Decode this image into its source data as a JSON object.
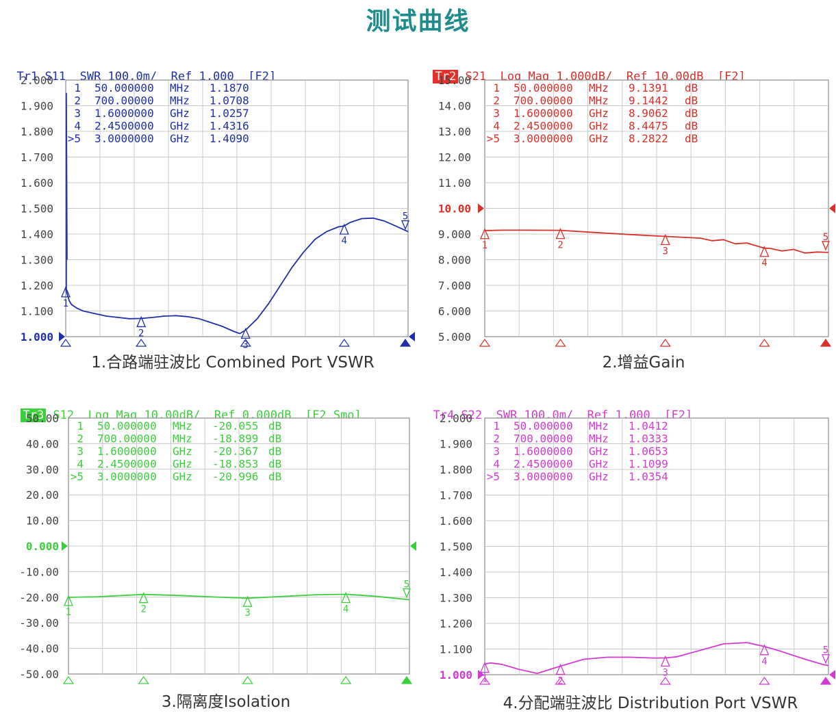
{
  "title": "测试曲线",
  "panels": [
    {
      "id": "p1",
      "header": {
        "trace": "Tr1",
        "rest": " S11  SWR 100.0m/  Ref 1.000  [F2]",
        "trace_highlighted": false
      },
      "caption": "1.合路端驻波比 Combined Port VSWR",
      "color": "#1f2fa8",
      "ticks": [
        "2.000",
        "1.900",
        "1.800",
        "1.700",
        "1.600",
        "1.500",
        "1.400",
        "1.300",
        "1.200",
        "1.100",
        "1.000"
      ],
      "ref_index": 10,
      "markers": [
        {
          "num": "1",
          "freq": "50.000000",
          "unit": "MHz",
          "value": "1.1870",
          "dB": ""
        },
        {
          "num": "2",
          "freq": "700.00000",
          "unit": "MHz",
          "value": "1.0708",
          "dB": ""
        },
        {
          "num": "3",
          "freq": "1.6000000",
          "unit": "GHz",
          "value": "1.0257",
          "dB": ""
        },
        {
          "num": "4",
          "freq": "2.4500000",
          "unit": "GHz",
          "value": "1.4316",
          "dB": ""
        },
        {
          "num": ">5",
          "freq": "3.0000000",
          "unit": "GHz",
          "value": "1.4090",
          "dB": ""
        }
      ]
    },
    {
      "id": "p2",
      "header": {
        "trace": "Tr2",
        "rest": " S21  Log Mag 1.000dB/  Ref 10.00dB  [F2]",
        "trace_highlighted": true
      },
      "caption": "2.增益Gain",
      "color": "#d9302a",
      "ticks": [
        "15.00",
        "14.00",
        "13.00",
        "12.00",
        "11.00",
        "10.00",
        "9.000",
        "8.000",
        "7.000",
        "6.000",
        "5.000"
      ],
      "ref_index": 5,
      "markers": [
        {
          "num": "1",
          "freq": "50.000000",
          "unit": "MHz",
          "value": "9.1391",
          "dB": "dB"
        },
        {
          "num": "2",
          "freq": "700.00000",
          "unit": "MHz",
          "value": "9.1442",
          "dB": "dB"
        },
        {
          "num": "3",
          "freq": "1.6000000",
          "unit": "GHz",
          "value": "8.9062",
          "dB": "dB"
        },
        {
          "num": "4",
          "freq": "2.4500000",
          "unit": "GHz",
          "value": "8.4475",
          "dB": "dB"
        },
        {
          "num": ">5",
          "freq": "3.0000000",
          "unit": "GHz",
          "value": "8.2822",
          "dB": "dB"
        }
      ]
    },
    {
      "id": "p3",
      "header": {
        "trace": "Tr3",
        "rest": " S12  Log Mag 10.00dB/  Ref 0.000dB  [F2 Smo]",
        "trace_highlighted": true
      },
      "caption": "3.隔离度Isolation",
      "color": "#3ccf3c",
      "ticks": [
        "50.00",
        "40.00",
        "30.00",
        "20.00",
        "10.00",
        "0.000",
        "-10.00",
        "-20.00",
        "-30.00",
        "-40.00",
        "-50.00"
      ],
      "ref_index": 5,
      "markers": [
        {
          "num": "1",
          "freq": "50.000000",
          "unit": "MHz",
          "value": "-20.055",
          "dB": "dB"
        },
        {
          "num": "2",
          "freq": "700.00000",
          "unit": "MHz",
          "value": "-18.899",
          "dB": "dB"
        },
        {
          "num": "3",
          "freq": "1.6000000",
          "unit": "GHz",
          "value": "-20.367",
          "dB": "dB"
        },
        {
          "num": "4",
          "freq": "2.4500000",
          "unit": "GHz",
          "value": "-18.853",
          "dB": "dB"
        },
        {
          "num": ">5",
          "freq": "3.0000000",
          "unit": "GHz",
          "value": "-20.996",
          "dB": "dB"
        }
      ]
    },
    {
      "id": "p4",
      "header": {
        "trace": "Tr4",
        "rest": " S22  SWR 100.0m/  Ref 1.000  [F2]",
        "trace_highlighted": false
      },
      "caption": "4.分配端驻波比 Distribution  Port VSWR",
      "color": "#d23ad2",
      "ticks": [
        "2.000",
        "1.900",
        "1.800",
        "1.700",
        "1.600",
        "1.500",
        "1.400",
        "1.300",
        "1.200",
        "1.100",
        "1.000"
      ],
      "ref_index": 10,
      "markers": [
        {
          "num": "1",
          "freq": "50.000000",
          "unit": "MHz",
          "value": "1.0412",
          "dB": ""
        },
        {
          "num": "2",
          "freq": "700.00000",
          "unit": "MHz",
          "value": "1.0333",
          "dB": ""
        },
        {
          "num": "3",
          "freq": "1.6000000",
          "unit": "GHz",
          "value": "1.0653",
          "dB": ""
        },
        {
          "num": "4",
          "freq": "2.4500000",
          "unit": "GHz",
          "value": "1.1099",
          "dB": ""
        },
        {
          "num": ">5",
          "freq": "3.0000000",
          "unit": "GHz",
          "value": "1.0354",
          "dB": ""
        }
      ]
    }
  ],
  "chart_data": [
    {
      "type": "line",
      "series": [
        {
          "x": [
            0.05,
            0.06,
            0.08,
            0.1,
            0.15,
            0.2,
            0.3,
            0.4,
            0.5,
            0.6,
            0.7,
            0.8,
            0.9,
            1.0,
            1.1,
            1.2,
            1.3,
            1.4,
            1.5,
            1.55,
            1.6,
            1.7,
            1.8,
            1.9,
            2.0,
            2.1,
            2.2,
            2.3,
            2.4,
            2.45,
            2.5,
            2.6,
            2.7,
            2.8,
            2.9,
            3.0
          ],
          "y": [
            1.187,
            1.17,
            1.14,
            1.125,
            1.11,
            1.1,
            1.09,
            1.08,
            1.075,
            1.07,
            1.0708,
            1.075,
            1.08,
            1.082,
            1.078,
            1.07,
            1.055,
            1.04,
            1.02,
            1.012,
            1.0257,
            1.07,
            1.13,
            1.2,
            1.27,
            1.33,
            1.38,
            1.41,
            1.428,
            1.4316,
            1.445,
            1.46,
            1.462,
            1.45,
            1.43,
            1.409
          ]
        }
      ],
      "ylim": [
        1.0,
        2.0
      ],
      "xlim": [
        0.05,
        3.0
      ]
    },
    {
      "type": "line",
      "series": [
        {
          "x": [
            0.05,
            0.1,
            0.2,
            0.4,
            0.7,
            1.0,
            1.3,
            1.6,
            1.9,
            2.0,
            2.1,
            2.2,
            2.3,
            2.45,
            2.5,
            2.6,
            2.7,
            2.8,
            2.9,
            3.0
          ],
          "y": [
            9.1391,
            9.14,
            9.15,
            9.15,
            9.1442,
            9.06,
            8.98,
            8.9062,
            8.84,
            8.74,
            8.78,
            8.62,
            8.65,
            8.4475,
            8.44,
            8.34,
            8.4,
            8.26,
            8.3,
            8.2822
          ]
        }
      ],
      "ylim": [
        5.0,
        15.0
      ],
      "xlim": [
        0.05,
        3.0
      ]
    },
    {
      "type": "line",
      "series": [
        {
          "x": [
            0.05,
            0.3,
            0.7,
            1.0,
            1.3,
            1.6,
            1.9,
            2.2,
            2.45,
            2.7,
            3.0
          ],
          "y": [
            -20.055,
            -19.8,
            -18.899,
            -19.3,
            -19.9,
            -20.367,
            -19.7,
            -19.0,
            -18.853,
            -19.6,
            -20.996
          ]
        }
      ],
      "ylim": [
        -50.0,
        50.0
      ],
      "xlim": [
        0.05,
        3.0
      ]
    },
    {
      "type": "line",
      "series": [
        {
          "x": [
            0.05,
            0.1,
            0.2,
            0.35,
            0.5,
            0.7,
            0.9,
            1.1,
            1.3,
            1.5,
            1.6,
            1.7,
            1.9,
            2.1,
            2.3,
            2.45,
            2.6,
            2.8,
            2.95,
            3.0
          ],
          "y": [
            1.0412,
            1.046,
            1.04,
            1.02,
            1.005,
            1.0333,
            1.06,
            1.068,
            1.068,
            1.065,
            1.0653,
            1.07,
            1.095,
            1.12,
            1.125,
            1.1099,
            1.09,
            1.06,
            1.04,
            1.0354
          ]
        }
      ],
      "ylim": [
        1.0,
        2.0
      ],
      "xlim": [
        0.05,
        3.0
      ]
    }
  ]
}
